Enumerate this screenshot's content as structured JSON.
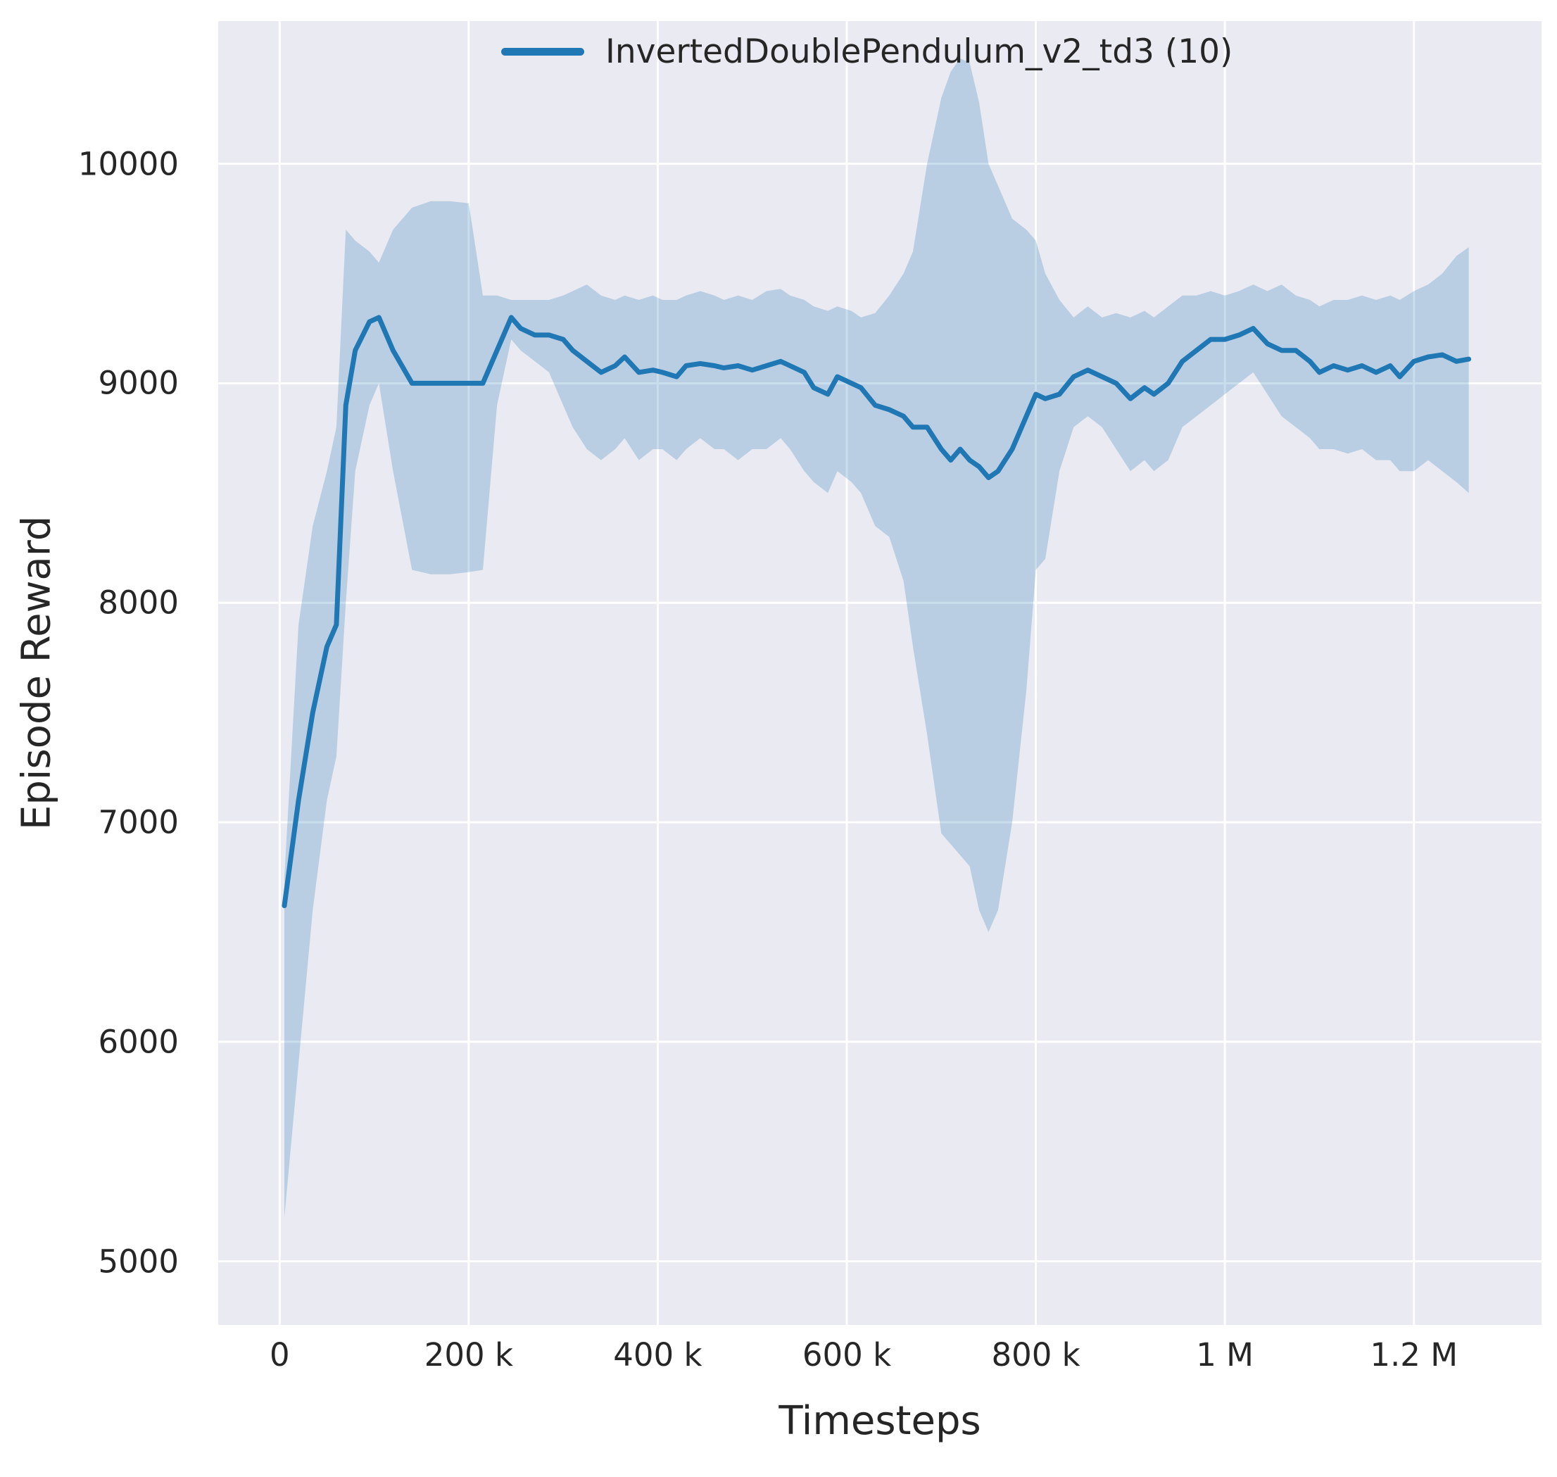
{
  "chart_data": {
    "type": "line",
    "title": "",
    "xlabel": "Timesteps",
    "ylabel": "Episode Reward",
    "legend": [
      "InvertedDoublePendulum_v2_td3 (10)"
    ],
    "grid": true,
    "legend_position": "upper center",
    "xlim": [
      -65000,
      1335000
    ],
    "ylim": [
      4710,
      10650
    ],
    "x_ticks": {
      "values": [
        0,
        200000,
        400000,
        600000,
        800000,
        1000000,
        1200000
      ],
      "labels": [
        "0",
        "200 k",
        "400 k",
        "600 k",
        "800 k",
        "1 M",
        "1.2 M"
      ]
    },
    "y_ticks": {
      "values": [
        5000,
        6000,
        7000,
        8000,
        9000,
        10000
      ],
      "labels": [
        "5000",
        "6000",
        "7000",
        "8000",
        "9000",
        "10000"
      ]
    },
    "x": [
      5000,
      20000,
      35000,
      50000,
      60000,
      70000,
      80000,
      95000,
      105000,
      120000,
      140000,
      160000,
      180000,
      200000,
      215000,
      230000,
      245000,
      255000,
      270000,
      285000,
      300000,
      310000,
      325000,
      340000,
      355000,
      365000,
      380000,
      395000,
      405000,
      420000,
      430000,
      445000,
      460000,
      470000,
      485000,
      500000,
      515000,
      530000,
      540000,
      555000,
      565000,
      580000,
      590000,
      605000,
      615000,
      630000,
      645000,
      660000,
      670000,
      685000,
      700000,
      710000,
      720000,
      730000,
      740000,
      750000,
      760000,
      775000,
      790000,
      800000,
      810000,
      825000,
      840000,
      855000,
      870000,
      885000,
      900000,
      915000,
      925000,
      940000,
      955000,
      970000,
      985000,
      1000000,
      1015000,
      1030000,
      1045000,
      1060000,
      1075000,
      1090000,
      1100000,
      1115000,
      1130000,
      1145000,
      1160000,
      1175000,
      1185000,
      1200000,
      1215000,
      1230000,
      1245000,
      1258000
    ],
    "series": [
      {
        "name": "InvertedDoublePendulum_v2_td3 (10)",
        "values": [
          6620,
          7100,
          7500,
          7800,
          7900,
          8900,
          9150,
          9280,
          9300,
          9150,
          9000,
          9000,
          9000,
          9000,
          9000,
          9150,
          9300,
          9250,
          9220,
          9220,
          9200,
          9150,
          9100,
          9050,
          9080,
          9120,
          9050,
          9060,
          9050,
          9030,
          9080,
          9090,
          9080,
          9070,
          9080,
          9060,
          9080,
          9100,
          9080,
          9050,
          8980,
          8950,
          9030,
          9000,
          8980,
          8900,
          8880,
          8850,
          8800,
          8800,
          8700,
          8650,
          8700,
          8650,
          8620,
          8570,
          8600,
          8700,
          8850,
          8950,
          8930,
          8950,
          9030,
          9060,
          9030,
          9000,
          8930,
          8980,
          8950,
          9000,
          9100,
          9150,
          9200,
          9200,
          9220,
          9250,
          9180,
          9150,
          9150,
          9100,
          9050,
          9080,
          9060,
          9080,
          9050,
          9080,
          9030,
          9100,
          9120,
          9130,
          9100,
          9110
        ],
        "band_lower": [
          5200,
          5900,
          6600,
          7100,
          7300,
          8000,
          8600,
          8900,
          9000,
          8600,
          8150,
          8130,
          8130,
          8140,
          8150,
          8900,
          9200,
          9150,
          9100,
          9050,
          8900,
          8800,
          8700,
          8650,
          8700,
          8750,
          8650,
          8700,
          8700,
          8650,
          8700,
          8750,
          8700,
          8700,
          8650,
          8700,
          8700,
          8750,
          8700,
          8600,
          8550,
          8500,
          8600,
          8550,
          8500,
          8350,
          8300,
          8100,
          7800,
          7400,
          6950,
          6900,
          6850,
          6800,
          6600,
          6500,
          6600,
          7000,
          7600,
          8150,
          8200,
          8600,
          8800,
          8850,
          8800,
          8700,
          8600,
          8650,
          8600,
          8650,
          8800,
          8850,
          8900,
          8950,
          9000,
          9050,
          8950,
          8850,
          8800,
          8750,
          8700,
          8700,
          8680,
          8700,
          8650,
          8650,
          8600,
          8600,
          8650,
          8600,
          8550,
          8500
        ],
        "band_upper": [
          6750,
          7900,
          8350,
          8600,
          8800,
          9700,
          9650,
          9600,
          9550,
          9700,
          9800,
          9830,
          9830,
          9820,
          9400,
          9400,
          9380,
          9380,
          9380,
          9380,
          9400,
          9420,
          9450,
          9400,
          9380,
          9400,
          9380,
          9400,
          9380,
          9380,
          9400,
          9420,
          9400,
          9380,
          9400,
          9380,
          9420,
          9430,
          9400,
          9380,
          9350,
          9330,
          9350,
          9330,
          9300,
          9320,
          9400,
          9500,
          9600,
          10000,
          10300,
          10420,
          10480,
          10460,
          10280,
          10000,
          9900,
          9750,
          9700,
          9650,
          9500,
          9380,
          9300,
          9350,
          9300,
          9320,
          9300,
          9330,
          9300,
          9350,
          9400,
          9400,
          9420,
          9400,
          9420,
          9450,
          9420,
          9450,
          9400,
          9380,
          9350,
          9380,
          9380,
          9400,
          9380,
          9400,
          9380,
          9420,
          9450,
          9500,
          9580,
          9620
        ]
      }
    ],
    "colors": {
      "line": "#1f77b4",
      "band": "rgba(31,119,180,0.24)",
      "plot_bg": "#eaeaf2",
      "grid": "#ffffff",
      "text": "#262626",
      "figure_bg": "#ffffff"
    }
  }
}
